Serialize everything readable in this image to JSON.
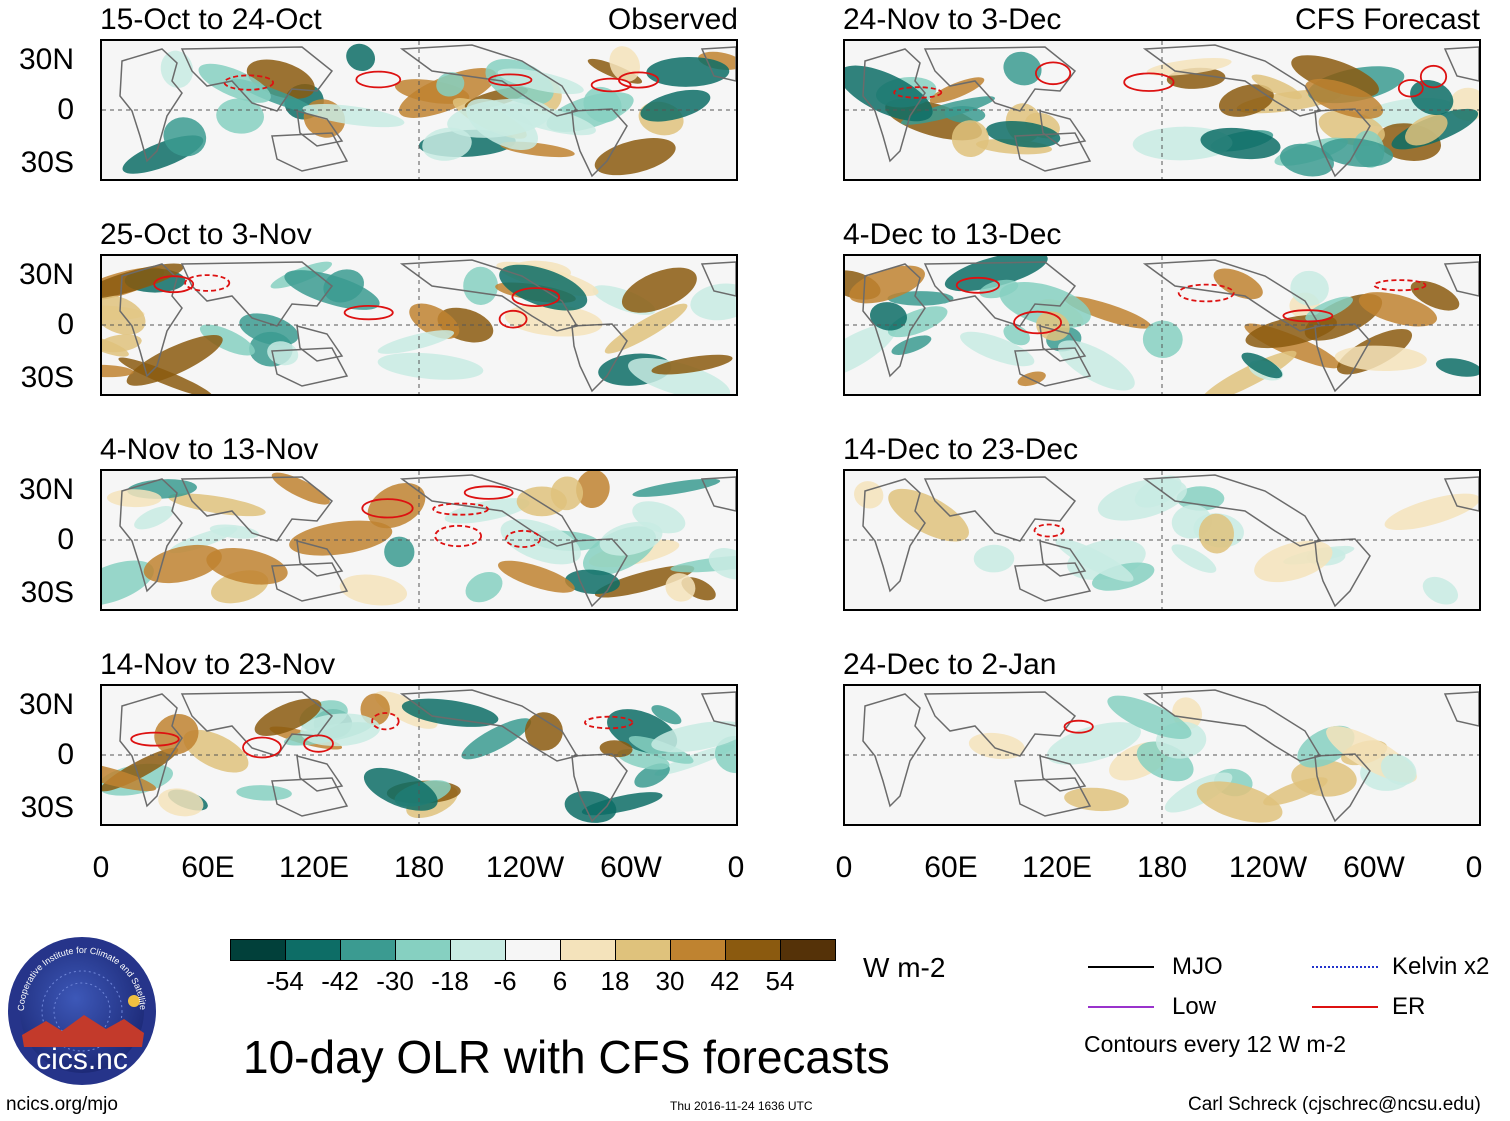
{
  "left_header": "Observed",
  "right_header": "CFS Forecast",
  "panels_left": [
    {
      "title": "15-Oct to 24-Oct"
    },
    {
      "title": "25-Oct to 3-Nov"
    },
    {
      "title": "4-Nov to 13-Nov"
    },
    {
      "title": "14-Nov to 23-Nov"
    }
  ],
  "panels_right": [
    {
      "title": "24-Nov to 3-Dec"
    },
    {
      "title": "4-Dec to 13-Dec"
    },
    {
      "title": "14-Dec to 23-Dec"
    },
    {
      "title": "24-Dec to 2-Jan"
    }
  ],
  "lat_ticks": [
    "30N",
    "0",
    "30S"
  ],
  "lon_ticks": [
    "0",
    "60E",
    "120E",
    "180",
    "120W",
    "60W",
    "0"
  ],
  "colorbar": {
    "colors": [
      "#01403a",
      "#0d6d66",
      "#3b9b91",
      "#86d0c1",
      "#c8ebe3",
      "#f6f6f6",
      "#f4e3bb",
      "#dfc27c",
      "#bf8330",
      "#8b5a0f",
      "#553208"
    ],
    "ticks": [
      "-54",
      "-42",
      "-30",
      "-18",
      "-6",
      "6",
      "18",
      "30",
      "42",
      "54"
    ],
    "unit": "W m-2"
  },
  "legend": {
    "items": [
      {
        "label": "MJO",
        "color": "#000000"
      },
      {
        "label": "Kelvin x2",
        "color": "#2233cc"
      },
      {
        "label": "Low",
        "color": "#9933cc"
      },
      {
        "label": "ER",
        "color": "#dd1111"
      }
    ],
    "note": "Contours every 12 W m-2"
  },
  "logo_text": "cics.nc",
  "logo_ring": "Cooperative Institute for Climate and Satellites",
  "main_title": "10-day OLR with CFS forecasts",
  "footer_left": "ncics.org/mjo",
  "footer_center": "Thu 2016-11-24 1636 UTC",
  "footer_right": "Carl Schreck (cjschrec@ncsu.edu)"
}
